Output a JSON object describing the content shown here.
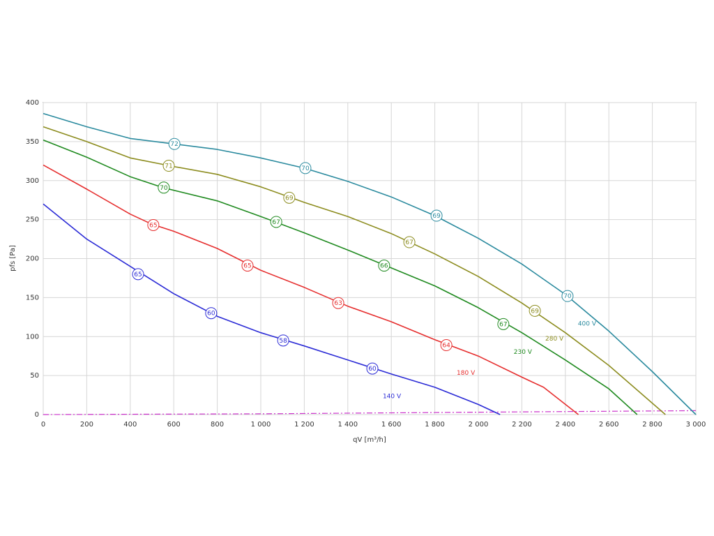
{
  "chart_data": {
    "type": "line",
    "x_label": "qV [m³/h]",
    "y_label": "pfs [Pa]",
    "xlim": [
      0,
      3000
    ],
    "ylim": [
      0,
      400
    ],
    "grid": true,
    "xticks": [
      0,
      200,
      400,
      600,
      800,
      {
        "value": 1000,
        "label": "1 000"
      },
      {
        "value": 1200,
        "label": "1 200"
      },
      {
        "value": 1400,
        "label": "1 400"
      },
      {
        "value": 1600,
        "label": "1 600"
      },
      {
        "value": 1800,
        "label": "1 800"
      },
      {
        "value": 2000,
        "label": "2 000"
      },
      {
        "value": 2200,
        "label": "2 200"
      },
      {
        "value": 2400,
        "label": "2 400"
      },
      {
        "value": 2600,
        "label": "2 600"
      },
      {
        "value": 2800,
        "label": "2 800"
      },
      {
        "value": 3000,
        "label": "3 000"
      }
    ],
    "yticks": [
      0,
      50,
      100,
      150,
      200,
      250,
      300,
      350,
      400
    ],
    "series": [
      {
        "name": "140 V",
        "color": "#2b2bd6",
        "x": [
          0,
          200,
          400,
          600,
          800,
          1000,
          1200,
          1400,
          1600,
          1800,
          2000,
          2100
        ],
        "values": [
          270,
          225,
          190,
          155,
          126,
          105,
          88,
          70,
          52,
          35,
          13,
          0
        ],
        "markers": [
          {
            "x": 436,
            "y": 180,
            "label": 65
          },
          {
            "x": 772,
            "y": 130,
            "label": 60
          },
          {
            "x": 1103,
            "y": 95,
            "label": 58
          },
          {
            "x": 1513,
            "y": 59,
            "label": 60
          }
        ]
      },
      {
        "name": "180 V",
        "color": "#e62e2e",
        "x": [
          0,
          200,
          400,
          500,
          600,
          800,
          1000,
          1200,
          1400,
          1600,
          1800,
          2000,
          2200,
          2300,
          2460
        ],
        "values": [
          320,
          289,
          257,
          244,
          235,
          213,
          185,
          163,
          139,
          119,
          96,
          75,
          48,
          35,
          0
        ],
        "markers": [
          {
            "x": 506,
            "y": 243,
            "label": 65
          },
          {
            "x": 939,
            "y": 191,
            "label": 65
          },
          {
            "x": 1356,
            "y": 143,
            "label": 63
          },
          {
            "x": 1853,
            "y": 89,
            "label": 64
          }
        ]
      },
      {
        "name": "230 V",
        "color": "#1f8a1f",
        "x": [
          0,
          200,
          400,
          550,
          800,
          1000,
          1200,
          1400,
          1600,
          1800,
          2000,
          2200,
          2400,
          2600,
          2730
        ],
        "values": [
          352,
          330,
          305,
          291,
          274,
          254,
          233,
          211,
          188,
          165,
          137,
          105,
          70,
          33,
          0
        ],
        "markers": [
          {
            "x": 554,
            "y": 291,
            "label": 70
          },
          {
            "x": 1071,
            "y": 247,
            "label": 67
          },
          {
            "x": 1567,
            "y": 191,
            "label": 66
          },
          {
            "x": 2115,
            "y": 116,
            "label": 67
          }
        ]
      },
      {
        "name": "280 V",
        "color": "#8c8c1e",
        "x": [
          0,
          200,
          400,
          600,
          800,
          1000,
          1200,
          1400,
          1600,
          1800,
          2000,
          2200,
          2400,
          2600,
          2860
        ],
        "values": [
          369,
          350,
          329,
          318,
          308,
          292,
          272,
          254,
          232,
          206,
          177,
          143,
          105,
          63,
          0
        ],
        "markers": [
          {
            "x": 577,
            "y": 319,
            "label": 71
          },
          {
            "x": 1131,
            "y": 278,
            "label": 69
          },
          {
            "x": 1683,
            "y": 221,
            "label": 67
          },
          {
            "x": 2260,
            "y": 133,
            "label": 69
          }
        ]
      },
      {
        "name": "400 V",
        "color": "#2a8a9e",
        "x": [
          0,
          200,
          400,
          600,
          800,
          1000,
          1200,
          1400,
          1600,
          1800,
          2000,
          2200,
          2400,
          2600,
          2800,
          3000
        ],
        "values": [
          386,
          369,
          354,
          347,
          340,
          329,
          316,
          299,
          279,
          255,
          226,
          193,
          154,
          107,
          55,
          0
        ],
        "markers": [
          {
            "x": 603,
            "y": 347,
            "label": 72
          },
          {
            "x": 1205,
            "y": 316,
            "label": 70
          },
          {
            "x": 1808,
            "y": 255,
            "label": 69
          },
          {
            "x": 2410,
            "y": 152,
            "label": 70
          }
        ]
      }
    ],
    "reference_line": {
      "color": "#cc33cc",
      "x": [
        0,
        1000,
        2000,
        3000
      ],
      "values": [
        0,
        1,
        3,
        5
      ]
    }
  }
}
